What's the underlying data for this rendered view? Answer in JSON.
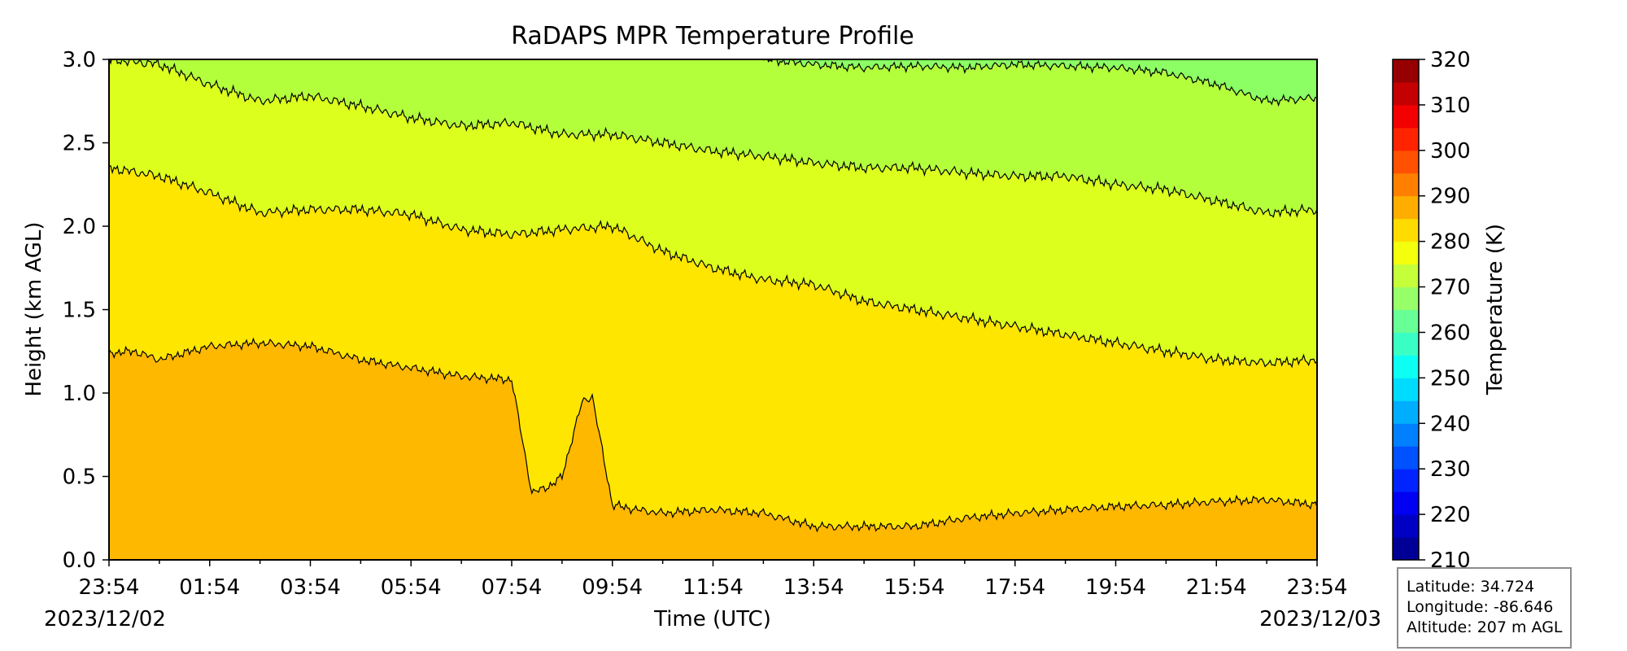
{
  "chart_data": {
    "type": "heatmap",
    "title": "RaDAPS MPR Temperature Profile",
    "xlabel": "Time (UTC)",
    "ylabel": "Height (km AGL)",
    "x_tick_labels": [
      "23:54",
      "01:54",
      "03:54",
      "05:54",
      "07:54",
      "09:54",
      "11:54",
      "13:54",
      "15:54",
      "17:54",
      "19:54",
      "21:54",
      "23:54"
    ],
    "x_start_date": "2023/12/02",
    "x_end_date": "2023/12/03",
    "ylim": [
      0,
      3.0
    ],
    "y_ticks": [
      0.0,
      0.5,
      1.0,
      1.5,
      2.0,
      2.5,
      3.0
    ],
    "colorbar": {
      "label": "Temperature (K)",
      "range": [
        210,
        320
      ],
      "ticks": [
        210,
        220,
        230,
        240,
        250,
        260,
        270,
        280,
        290,
        300,
        310,
        320
      ],
      "step": 5
    },
    "contour_levels_K": [
      270,
      275,
      280,
      285,
      290
    ],
    "contours": [
      {
        "level": 285,
        "x_hours": [
          0,
          0.5,
          1,
          2,
          3,
          4,
          5,
          6,
          7,
          8,
          8.4,
          8.8,
          9,
          9.4,
          9.6,
          10,
          10.5,
          11,
          12,
          13,
          14,
          15,
          16,
          17,
          18,
          19,
          20,
          21,
          22,
          23,
          24
        ],
        "heights": [
          1.24,
          1.25,
          1.2,
          1.28,
          1.3,
          1.28,
          1.2,
          1.15,
          1.1,
          1.08,
          0.4,
          0.45,
          0.5,
          0.95,
          0.98,
          0.33,
          0.3,
          0.28,
          0.3,
          0.28,
          0.2,
          0.2,
          0.2,
          0.25,
          0.28,
          0.3,
          0.32,
          0.33,
          0.35,
          0.36,
          0.33
        ]
      },
      {
        "level": 280,
        "x_hours": [
          0,
          1,
          2,
          3,
          4,
          5,
          6,
          7,
          8,
          9,
          10,
          11,
          12,
          13,
          14,
          15,
          16,
          17,
          18,
          19,
          20,
          21,
          22,
          23,
          24
        ],
        "heights": [
          2.35,
          2.3,
          2.2,
          2.08,
          2.1,
          2.1,
          2.07,
          1.98,
          1.95,
          1.98,
          2.0,
          1.85,
          1.75,
          1.68,
          1.65,
          1.55,
          1.5,
          1.45,
          1.4,
          1.35,
          1.3,
          1.25,
          1.2,
          1.18,
          1.2
        ]
      },
      {
        "level": 275,
        "x_hours": [
          0,
          1,
          2,
          3,
          4,
          5,
          6,
          7,
          8,
          9,
          10,
          11,
          12,
          13,
          14,
          15,
          16,
          17,
          18,
          19,
          20,
          21,
          22,
          23,
          24
        ],
        "heights": [
          3.0,
          2.97,
          2.85,
          2.75,
          2.78,
          2.72,
          2.65,
          2.6,
          2.62,
          2.55,
          2.55,
          2.5,
          2.45,
          2.42,
          2.38,
          2.35,
          2.35,
          2.32,
          2.3,
          2.3,
          2.25,
          2.22,
          2.15,
          2.08,
          2.1
        ]
      },
      {
        "level": 270,
        "x_hours": [
          13,
          14,
          15,
          16,
          17,
          18,
          19,
          20,
          21,
          22,
          23,
          24
        ],
        "heights": [
          3.0,
          2.97,
          2.95,
          2.96,
          2.95,
          2.97,
          2.96,
          2.95,
          2.92,
          2.85,
          2.75,
          2.77
        ]
      }
    ],
    "colors": {
      "band_285_290": "#ffb800",
      "band_280_285": "#ffe600",
      "band_275_280": "#dcff1e",
      "band_270_275": "#b4ff3c",
      "band_265_270": "#8cff64"
    }
  },
  "info_box": {
    "latitude": "Latitude: 34.724",
    "longitude": "Longitude: -86.646",
    "altitude": "Altitude: 207 m AGL"
  }
}
